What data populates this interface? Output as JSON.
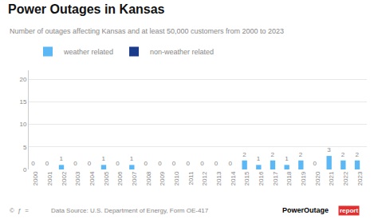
{
  "chart_data": {
    "type": "bar",
    "title": "Power Outages in Kansas",
    "subtitle": "Number of outages affecting Kansas and at least 50,000 customers from 2000 to 2023",
    "categories": [
      "2000",
      "2001",
      "2002",
      "2003",
      "2004",
      "2005",
      "2006",
      "2007",
      "2008",
      "2009",
      "2010",
      "2011",
      "2012",
      "2013",
      "2014",
      "2015",
      "2016",
      "2017",
      "2018",
      "2019",
      "2020",
      "2021",
      "2022",
      "2023"
    ],
    "series": [
      {
        "name": "weather related",
        "color": "#5bb8f5",
        "data_labels": true,
        "values": [
          0,
          0,
          1,
          0,
          0,
          1,
          0,
          1,
          0,
          0,
          0,
          0,
          0,
          0,
          0,
          2,
          1,
          2,
          1,
          2,
          0,
          3,
          2,
          2
        ]
      },
      {
        "name": "non-weather related",
        "color": "#1a3a8c",
        "values": [
          0,
          0,
          0,
          0,
          0,
          0,
          0,
          0,
          0,
          0,
          0,
          0,
          0,
          0,
          0,
          0,
          0,
          0,
          0,
          0,
          0,
          0,
          0,
          0
        ]
      }
    ],
    "ylim": [
      0,
      22
    ],
    "yticks": [
      0,
      5,
      10,
      15,
      20
    ],
    "grid": true,
    "legend": "upper left",
    "annotations": [
      "Data Source: U.S. Department of Energy, Form OE-417",
      "PowerOutage",
      "report",
      "©  ƒ  ="
    ]
  }
}
